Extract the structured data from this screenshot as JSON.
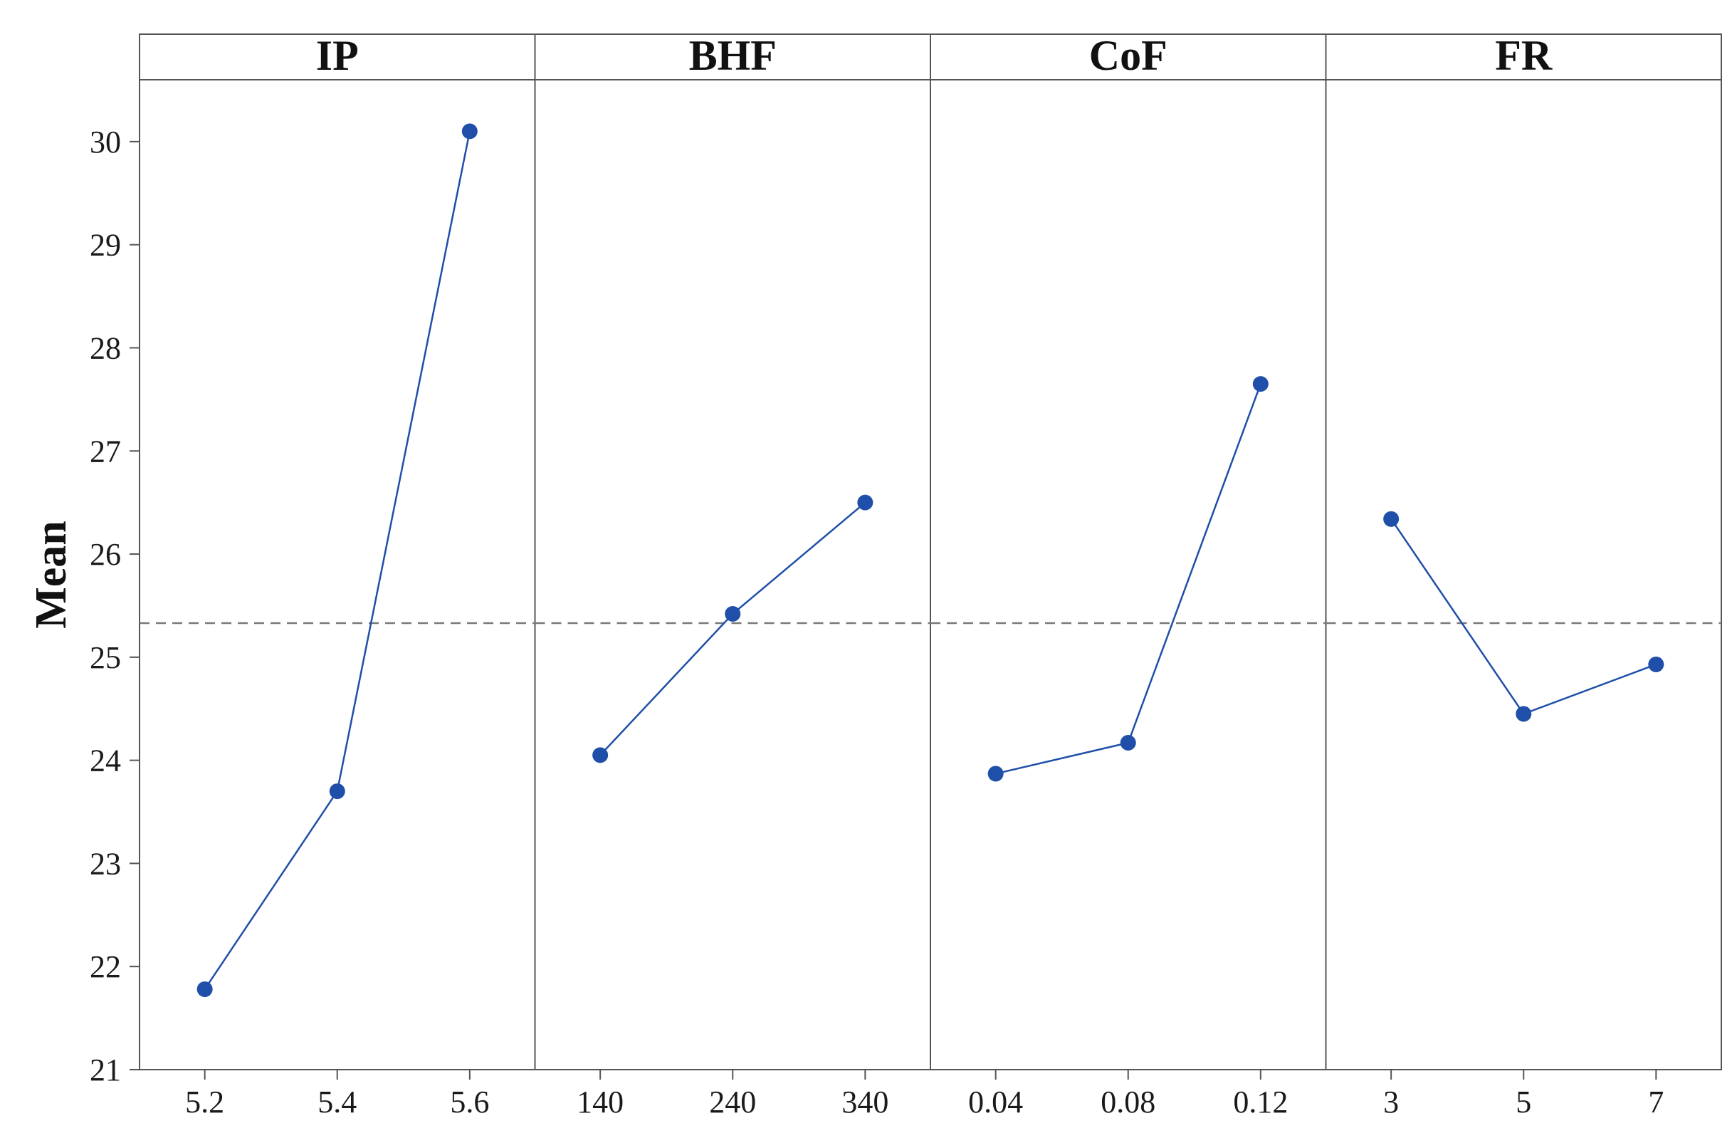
{
  "chart_data": {
    "type": "line",
    "ylabel": "Mean",
    "ylim": [
      21,
      30.6
    ],
    "yticks": [
      21,
      22,
      23,
      24,
      25,
      26,
      27,
      28,
      29,
      30
    ],
    "reference_line": 25.33,
    "colors": {
      "series": "#1f4fa8",
      "marker": "#1f4fa8",
      "reference": "#7a7a7a",
      "frame": "#555555"
    },
    "panels": [
      {
        "title": "IP",
        "categories": [
          "5.2",
          "5.4",
          "5.6"
        ],
        "values": [
          21.78,
          23.7,
          30.1
        ]
      },
      {
        "title": "BHF",
        "categories": [
          "140",
          "240",
          "340"
        ],
        "values": [
          24.05,
          25.42,
          26.5
        ]
      },
      {
        "title": "CoF",
        "categories": [
          "0.04",
          "0.08",
          "0.12"
        ],
        "values": [
          23.87,
          24.17,
          27.65
        ]
      },
      {
        "title": "FR",
        "categories": [
          "3",
          "5",
          "7"
        ],
        "values": [
          26.34,
          24.45,
          24.93
        ]
      }
    ]
  }
}
